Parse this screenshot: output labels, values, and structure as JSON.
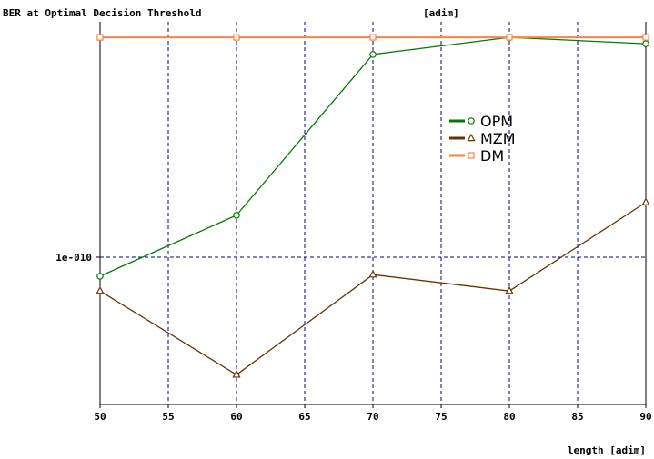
{
  "chart_data": {
    "type": "line",
    "title": "BER at Optimal Decision Threshold",
    "y_unit": "[adim]",
    "xlabel": "length [adim]",
    "x": [
      50,
      60,
      70,
      80,
      90
    ],
    "xlim": [
      50,
      90
    ],
    "x_ticks": [
      "50",
      "55",
      "60",
      "65",
      "70",
      "75",
      "80",
      "85",
      "90"
    ],
    "y_scale": "log",
    "y_tick_labels": [
      "1e-010"
    ],
    "grid": true,
    "legend_position": "upper-right-center",
    "series": [
      {
        "name": "OPM",
        "color": "#007a00",
        "marker": "circle",
        "values": [
          7e-11,
          2.2e-10,
          4.5e-09,
          6.2e-09,
          5.5e-09
        ]
      },
      {
        "name": "MZM",
        "color": "#663300",
        "marker": "triangle",
        "values": [
          5.3e-11,
          1.1e-11,
          7.2e-11,
          5.3e-11,
          2.8e-10
        ]
      },
      {
        "name": "DM",
        "color": "#ff8040",
        "marker": "square",
        "values": [
          6.2e-09,
          6.2e-09,
          6.2e-09,
          6.2e-09,
          6.2e-09
        ]
      }
    ]
  }
}
